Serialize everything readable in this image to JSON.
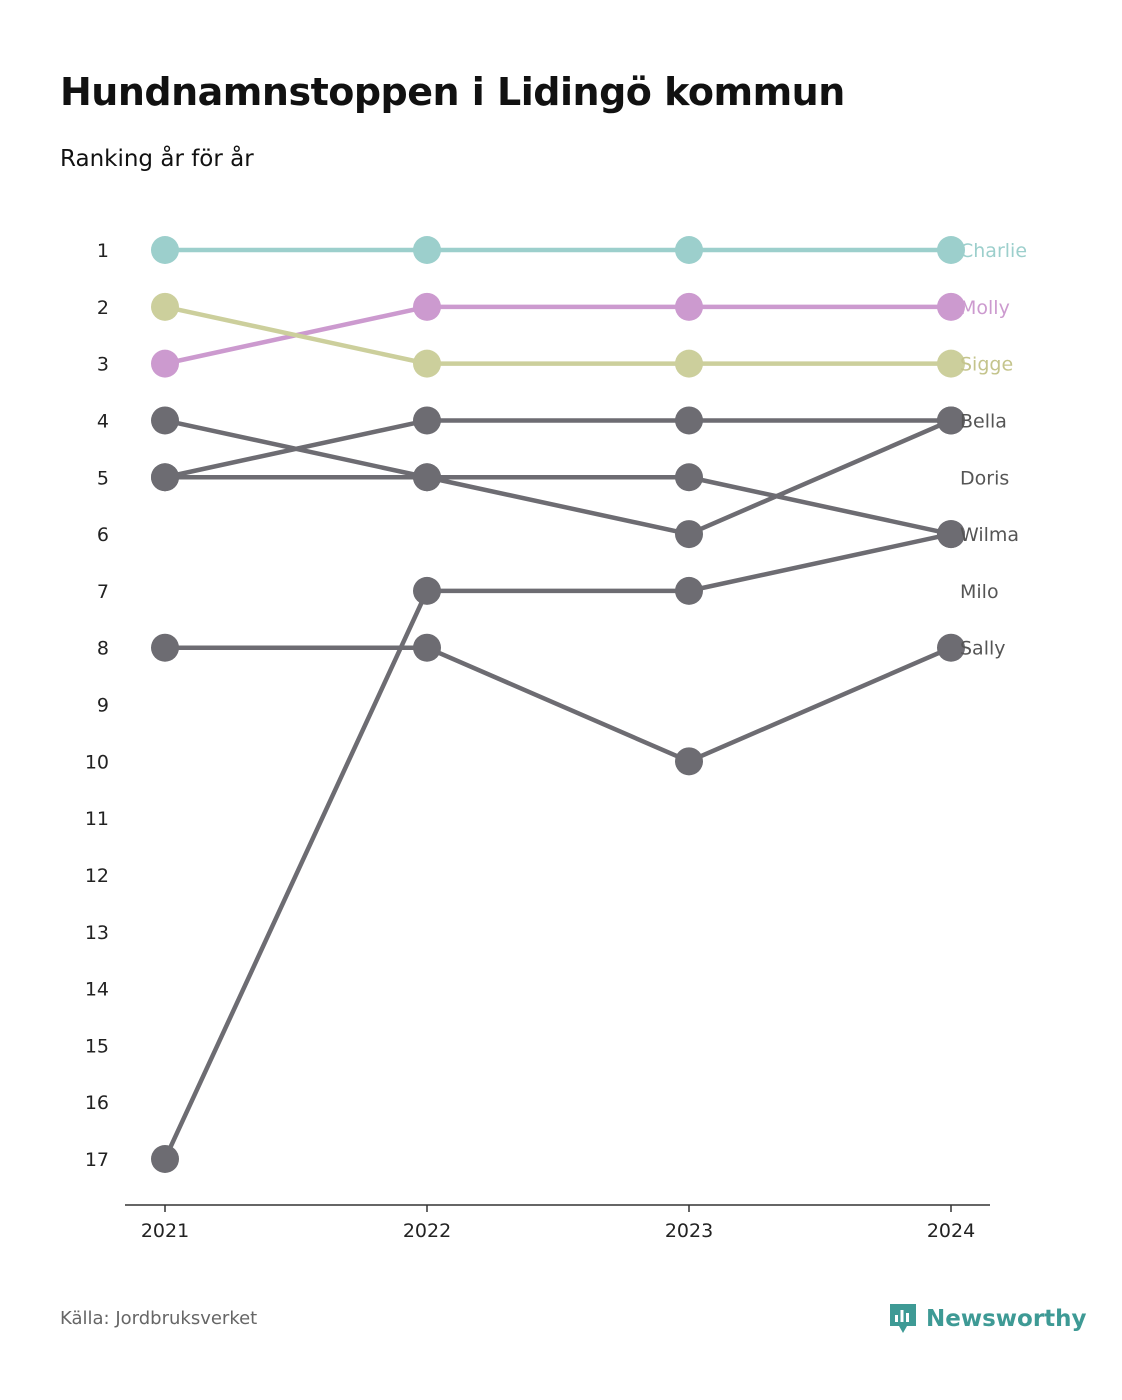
{
  "title": "Hundnamnstoppen i Lidingö kommun",
  "subtitle": "Ranking år för år",
  "source": "Källa: Jordbruksverket",
  "brand": {
    "name": "Newsworthy",
    "color": "#3e9a95",
    "icon": "newsworthy-logo-icon"
  },
  "chart_data": {
    "type": "line",
    "title": "Hundnamnstoppen i Lidingö kommun",
    "subtitle": "Ranking år för år",
    "x": [
      "2021",
      "2022",
      "2023",
      "2024"
    ],
    "y_ticks": [
      "1",
      "2",
      "3",
      "4",
      "5",
      "6",
      "7",
      "8",
      "9",
      "10",
      "11",
      "12",
      "13",
      "14",
      "15",
      "16",
      "17"
    ],
    "ylim": [
      1,
      17
    ],
    "y_reversed": true,
    "grid": false,
    "legend": "end-labels",
    "series": [
      {
        "name": "Charlie",
        "values": [
          1,
          1,
          1,
          1
        ],
        "color": "#9ccfcc",
        "label_color": "#9ccfcc"
      },
      {
        "name": "Molly",
        "values": [
          3,
          2,
          2,
          2
        ],
        "color": "#cc9acf",
        "label_color": "#cc9acf"
      },
      {
        "name": "Sigge",
        "values": [
          2,
          3,
          3,
          3
        ],
        "color": "#cccf9c",
        "label_color": "#c4c48c"
      },
      {
        "name": "Bella",
        "values": [
          5,
          4,
          4,
          4
        ],
        "color": "#6d6c72",
        "label_color": "#555555"
      },
      {
        "name": "Doris",
        "values": [
          4,
          5,
          6,
          4
        ],
        "color": "#6d6c72",
        "label_color": "#555555"
      },
      {
        "name": "Wilma",
        "values": [
          5,
          5,
          5,
          6
        ],
        "color": "#6d6c72",
        "label_color": "#555555"
      },
      {
        "name": "Milo",
        "values": [
          17,
          7,
          7,
          6
        ],
        "color": "#6d6c72",
        "label_color": "#555555"
      },
      {
        "name": "Sally",
        "values": [
          8,
          8,
          10,
          8
        ],
        "color": "#6d6c72",
        "label_color": "#555555"
      }
    ]
  }
}
